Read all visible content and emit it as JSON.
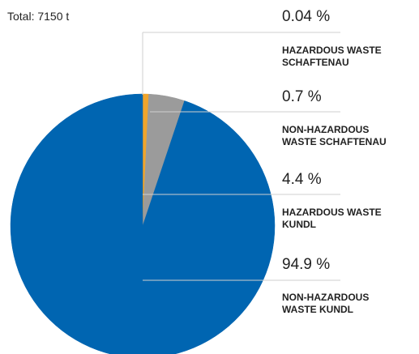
{
  "chart_data": {
    "type": "pie",
    "title": "Total: 7150 t",
    "categories": [
      "HAZARDOUS WASTE SCHAFTENAU",
      "NON-HAZARDOUS WASTE SCHAFTENAU",
      "HAZARDOUS WASTE KUNDL",
      "NON-HAZARDOUS WASTE KUNDL"
    ],
    "values": [
      0.04,
      0.7,
      4.4,
      94.9
    ],
    "value_labels": [
      "0.04 %",
      "0.7 %",
      "4.4 %",
      "94.9 %"
    ],
    "colors": [
      "#e8a02a",
      "#f0a52c",
      "#9b9b9b",
      "#0065b1"
    ]
  }
}
